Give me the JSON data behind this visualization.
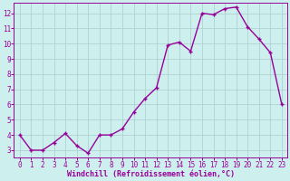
{
  "x": [
    0,
    1,
    2,
    3,
    4,
    5,
    6,
    7,
    8,
    9,
    10,
    11,
    12,
    13,
    14,
    15,
    16,
    17,
    18,
    19,
    20,
    21,
    22,
    23
  ],
  "y": [
    4.0,
    3.0,
    3.0,
    3.5,
    4.1,
    3.3,
    2.8,
    4.0,
    4.0,
    4.4,
    5.5,
    6.4,
    7.1,
    9.9,
    10.1,
    9.5,
    12.0,
    11.9,
    12.3,
    12.4,
    11.1,
    10.3,
    9.4,
    6.0
  ],
  "line_color": "#990099",
  "marker_color": "#990099",
  "bg_color": "#cdf0ee",
  "grid_color": "#aacccc",
  "xlabel": "Windchill (Refroidissement éolien,°C)",
  "xlabel_color": "#990099",
  "tick_color": "#990099",
  "spine_color": "#990099",
  "ylim": [
    2.5,
    12.7
  ],
  "xlim": [
    -0.5,
    23.5
  ],
  "yticks": [
    3,
    4,
    5,
    6,
    7,
    8,
    9,
    10,
    11,
    12
  ],
  "xticks": [
    0,
    1,
    2,
    3,
    4,
    5,
    6,
    7,
    8,
    9,
    10,
    11,
    12,
    13,
    14,
    15,
    16,
    17,
    18,
    19,
    20,
    21,
    22,
    23
  ],
  "marker_size": 2.5,
  "line_width": 1.0,
  "xlabel_fontsize": 6.0,
  "tick_fontsize": 5.5
}
